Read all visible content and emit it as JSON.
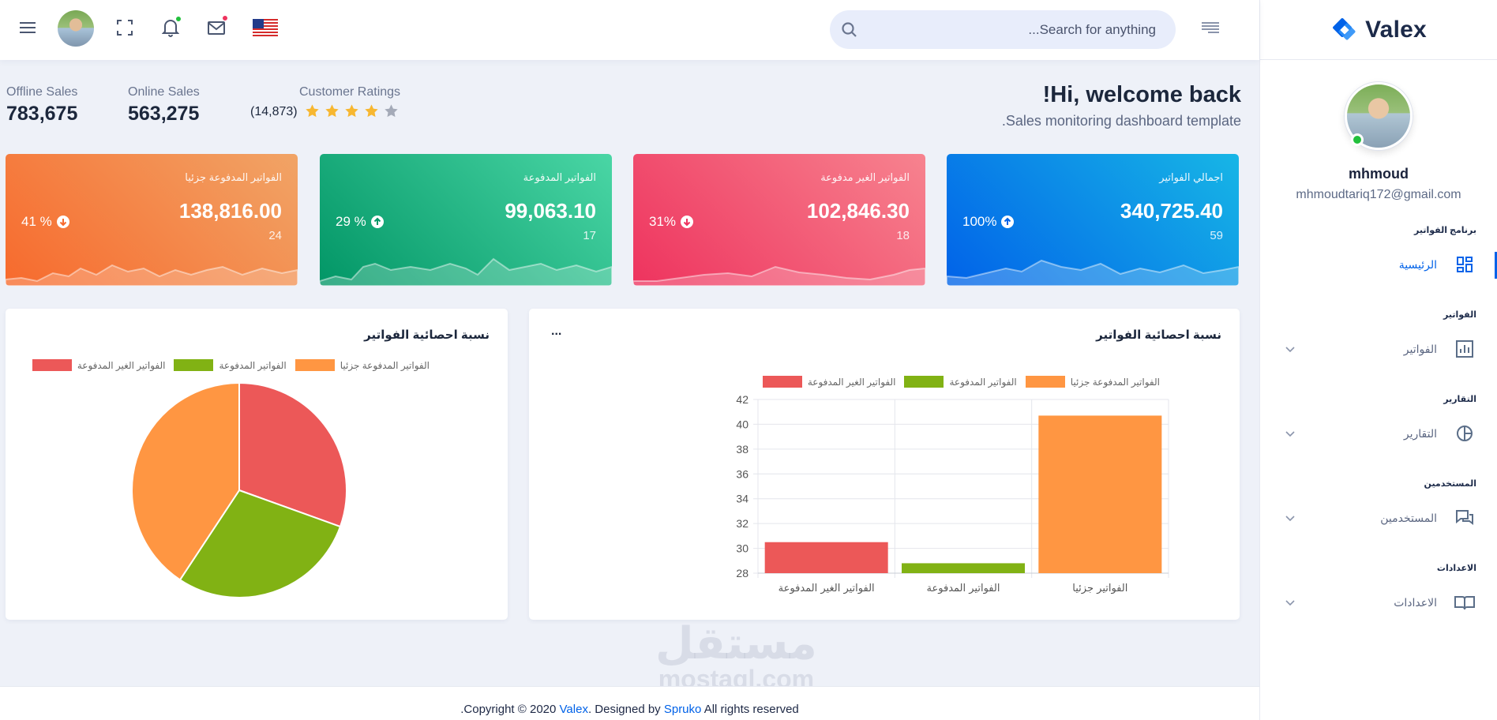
{
  "brand": {
    "name": "Valex"
  },
  "header": {
    "search_placeholder": "...Search for anything",
    "notification_dot_color": "#22c03c",
    "mail_dot_color": "#ee335e"
  },
  "profile": {
    "name": "mhmoud",
    "email": "mhmoudtariq172@gmail.com"
  },
  "sidebar": {
    "sections": [
      {
        "title": "برنامج الفواتير",
        "item": {
          "label": "الرئيسية",
          "icon": "dashboard-icon",
          "active": true
        }
      },
      {
        "title": "الفواتير",
        "item": {
          "label": "الفواتير",
          "icon": "bar-chart-icon",
          "active": false
        }
      },
      {
        "title": "التقارير",
        "item": {
          "label": "التقارير",
          "icon": "pie-chart-icon",
          "active": false
        }
      },
      {
        "title": "المستخدمين",
        "item": {
          "label": "المستخدمين",
          "icon": "chat-icon",
          "active": false
        }
      },
      {
        "title": "الاعدادات",
        "item": {
          "label": "الاعدادات",
          "icon": "book-icon",
          "active": false
        }
      }
    ]
  },
  "welcome": {
    "title": "!Hi, welcome back",
    "subtitle": ".Sales monitoring dashboard template"
  },
  "stats": {
    "offline": {
      "label": "Offline Sales",
      "value": "783,675"
    },
    "online": {
      "label": "Online Sales",
      "value": "563,275"
    },
    "ratings": {
      "label": "Customer Ratings",
      "count": "(14,873)",
      "stars": 4,
      "max_stars": 5
    }
  },
  "cards": [
    {
      "title": "اجمالي الفواتير",
      "value": "340,725.40",
      "count": "59",
      "percent": "100%",
      "direction": "up",
      "colors": [
        "#0162e8",
        "#17b6e6"
      ]
    },
    {
      "title": "الفواتير الغير مدفوعة",
      "value": "102,846.30",
      "count": "18",
      "percent": "31%",
      "direction": "down",
      "colors": [
        "#ee335e",
        "#f7838f"
      ]
    },
    {
      "title": "الفواتير المدفوعة",
      "value": "99,063.10",
      "count": "17",
      "percent": "29 %",
      "direction": "up",
      "colors": [
        "#029666",
        "#4ad6a5"
      ]
    },
    {
      "title": "الفواتير المدفوعة جزئيا",
      "value": "138,816.00",
      "count": "24",
      "percent": "41 %",
      "direction": "down",
      "colors": [
        "#f76a2d",
        "#f1a466"
      ]
    }
  ],
  "bar_panel": {
    "title": "نسبة احصائية الفواتير",
    "more": "..."
  },
  "pie_panel": {
    "title": "نسبة احصائية الفواتير"
  },
  "chart_data": [
    {
      "type": "bar",
      "categories": [
        "الفواتير الغير المدفوعة",
        "الفواتير المدفوعة",
        "الفواتير   جزئيا"
      ],
      "series": [
        {
          "name": "الفواتير الغير المدفوعة",
          "color": "#ec5858",
          "values": [
            30.5,
            null,
            null
          ]
        },
        {
          "name": "الفواتير المدفوعة",
          "color": "#81b214",
          "values": [
            null,
            28.8,
            null
          ]
        },
        {
          "name": "الفواتير المدفوعة جزئيا",
          "color": "#ff9642",
          "values": [
            null,
            null,
            40.7
          ]
        }
      ],
      "ylim": [
        28,
        42
      ],
      "yticks": [
        28,
        30,
        32,
        34,
        36,
        38,
        40,
        42
      ],
      "grid": true,
      "legend": "top"
    },
    {
      "type": "pie",
      "labels": [
        "الفواتير الغير المدفوعة",
        "الفواتير المدفوعة",
        "الفواتير المدفوعة جزئيا"
      ],
      "values": [
        30.5,
        28.8,
        40.7
      ],
      "colors": [
        "#ec5858",
        "#81b214",
        "#ff9642"
      ],
      "legend": "top"
    }
  ],
  "footer": {
    "prefix": ".Copyright © 2020 ",
    "brand": "Valex",
    "middle": ". Designed by ",
    "designer": "Spruko",
    "suffix": " All rights reserved"
  }
}
